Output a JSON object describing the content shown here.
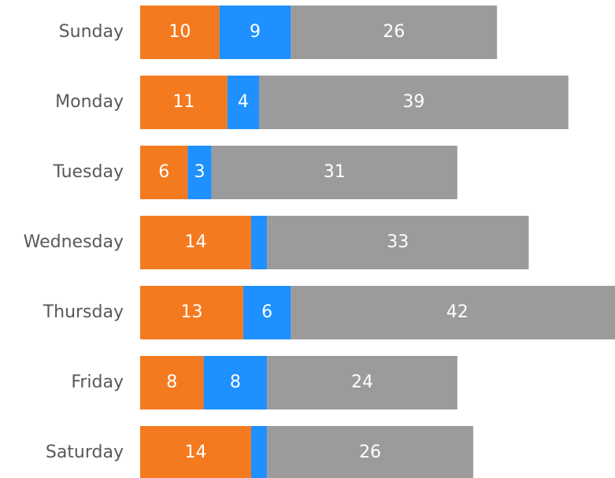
{
  "chart_data": {
    "type": "stacked-bar",
    "orientation": "horizontal",
    "categories": [
      "Sunday",
      "Monday",
      "Tuesday",
      "Wednesday",
      "Thursday",
      "Friday",
      "Saturday"
    ],
    "series": [
      {
        "color": "#f47a20",
        "values": [
          10,
          11,
          6,
          14,
          13,
          8,
          14
        ]
      },
      {
        "color": "#1e90ff",
        "values": [
          9,
          4,
          3,
          2,
          6,
          8,
          2
        ]
      },
      {
        "color": "#9b9b9b",
        "values": [
          26,
          39,
          31,
          33,
          42,
          24,
          26
        ]
      }
    ]
  }
}
